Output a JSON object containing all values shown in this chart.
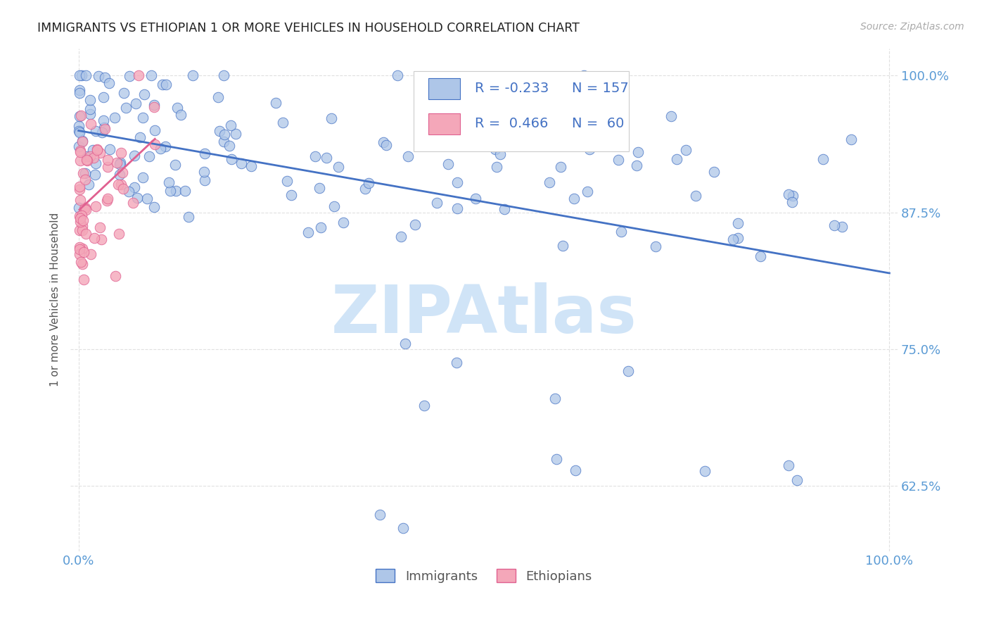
{
  "title": "IMMIGRANTS VS ETHIOPIAN 1 OR MORE VEHICLES IN HOUSEHOLD CORRELATION CHART",
  "source": "Source: ZipAtlas.com",
  "ylabel": "1 or more Vehicles in Household",
  "ylim": [
    0.565,
    1.025
  ],
  "xlim": [
    -0.01,
    1.01
  ],
  "yticks": [
    0.625,
    0.75,
    0.875,
    1.0
  ],
  "ytick_labels": [
    "62.5%",
    "75.0%",
    "87.5%",
    "100.0%"
  ],
  "xtick_labels": [
    "0.0%",
    "100.0%"
  ],
  "legend_r_immigrants": "-0.233",
  "legend_n_immigrants": "157",
  "legend_r_ethiopians": "0.466",
  "legend_n_ethiopians": "60",
  "immigrant_color": "#aec6e8",
  "ethiopian_color": "#f4a7b9",
  "immigrant_line_color": "#4472c4",
  "ethiopian_line_color": "#e06090",
  "watermark_text": "ZIPAtlas",
  "watermark_color": "#d0e4f7",
  "background_color": "#ffffff",
  "grid_color": "#e0e0e0",
  "title_color": "#222222",
  "axis_tick_color": "#5b9bd5",
  "ylabel_color": "#555555"
}
